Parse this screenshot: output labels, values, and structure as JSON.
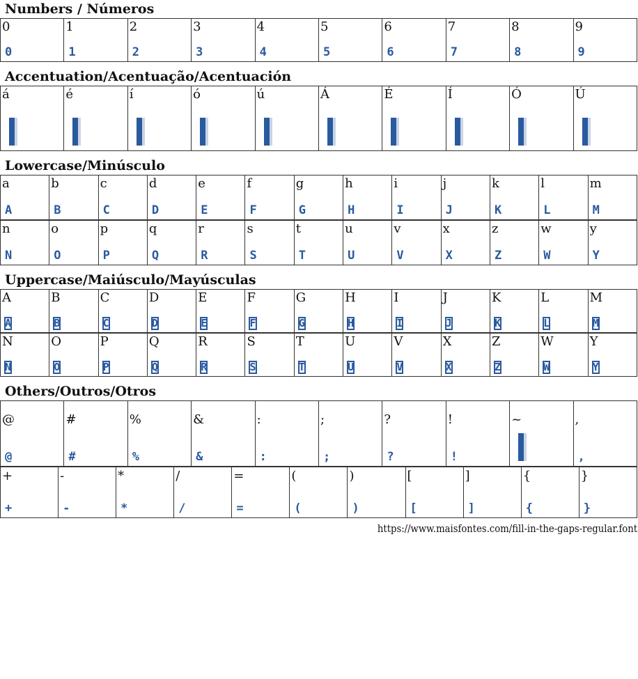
{
  "sections": [
    {
      "title": "Numbers / Números",
      "rows": [
        {
          "cls": "r-num",
          "chars": [
            "0",
            "1",
            "2",
            "3",
            "4",
            "5",
            "6",
            "7",
            "8",
            "9"
          ]
        }
      ]
    },
    {
      "title": "Accentuation/Acentuação/Acentuación",
      "rows": [
        {
          "cls": "r-acc",
          "chars": [
            "á",
            "é",
            "í",
            "ó",
            "ú",
            "Á",
            "É",
            "Í",
            "Ó",
            "Ú"
          ]
        }
      ]
    },
    {
      "title": "Lowercase/Minúsculo",
      "rows": [
        {
          "cls": "r-low",
          "chars": [
            "a",
            "b",
            "c",
            "d",
            "e",
            "f",
            "g",
            "h",
            "i",
            "j",
            "k",
            "l",
            "m"
          ]
        },
        {
          "cls": "r-low",
          "chars": [
            "n",
            "o",
            "p",
            "q",
            "r",
            "s",
            "t",
            "u",
            "v",
            "x",
            "z",
            "w",
            "y"
          ]
        }
      ]
    },
    {
      "title": "Uppercase/Maiúsculo/Mayúsculas",
      "rows": [
        {
          "cls": "r-up",
          "chars": [
            "A",
            "B",
            "C",
            "D",
            "E",
            "F",
            "G",
            "H",
            "I",
            "J",
            "K",
            "L",
            "M"
          ]
        },
        {
          "cls": "r-up",
          "chars": [
            "N",
            "O",
            "P",
            "Q",
            "R",
            "S",
            "T",
            "U",
            "V",
            "X",
            "Z",
            "W",
            "Y"
          ]
        }
      ]
    },
    {
      "title": "Others/Outros/Otros",
      "rows": [
        {
          "cls": "r-oth1",
          "chars": [
            "@",
            "#",
            "%",
            "&",
            ":",
            ";",
            "?",
            "!",
            "~",
            ","
          ]
        },
        {
          "cls": "r-oth2",
          "chars": [
            "+",
            "-",
            "*",
            "/",
            "=",
            "(",
            ")",
            "[",
            "]",
            "{",
            "}"
          ]
        }
      ]
    }
  ],
  "glyph_color": "#2a5a9e",
  "footer": "https://www.maisfontes.com/fill-in-the-gaps-regular.font"
}
